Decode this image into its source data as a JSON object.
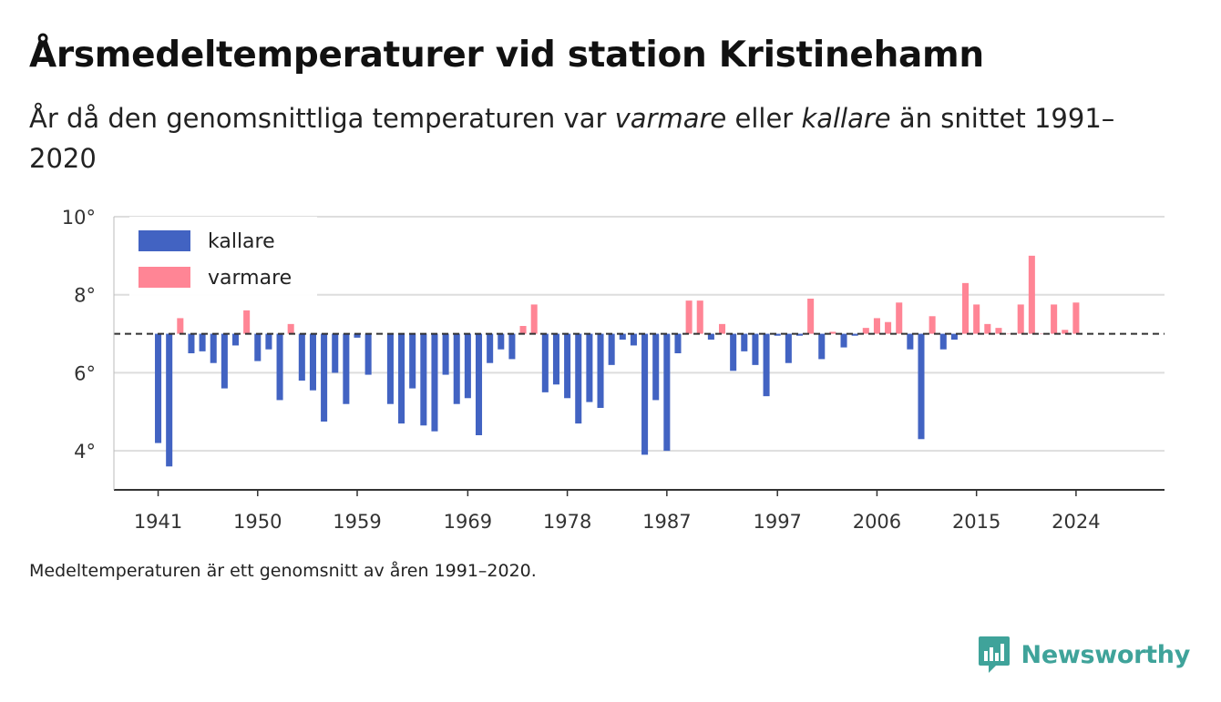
{
  "title": "Årsmedeltemperaturer vid station Kristinehamn",
  "subtitle": {
    "part1": "År då den genomsnittliga temperaturen var ",
    "warm_word": "varmare",
    "part2": " eller ",
    "cold_word": "kallare",
    "part3": " än snittet 1991–2020"
  },
  "footnote": "Medeltemperaturen är ett genomsnitt av åren 1991–2020.",
  "brand": "Newsworthy",
  "colors": {
    "cold": "#4263c2",
    "warm": "#ff8595",
    "grid": "#dddddd",
    "axis": "#333333",
    "brand": "#3fa39a"
  },
  "chart_data": {
    "type": "bar",
    "baseline": 7.0,
    "ylim": [
      3,
      10
    ],
    "yticks": [
      4,
      6,
      8,
      10
    ],
    "ytick_labels": [
      "4°",
      "6°",
      "8°",
      "10°"
    ],
    "xlim": [
      1937,
      2032
    ],
    "xticks": [
      1941,
      1950,
      1959,
      1969,
      1978,
      1987,
      1997,
      2006,
      2015,
      2024
    ],
    "xtick_labels": [
      "1941",
      "1950",
      "1959",
      "1969",
      "1978",
      "1987",
      "1997",
      "2006",
      "2015",
      "2024"
    ],
    "legend": {
      "position": "top-left",
      "entries": [
        {
          "key": "cold",
          "label": "kallare"
        },
        {
          "key": "warm",
          "label": "varmare"
        }
      ]
    },
    "years": [
      1941,
      1942,
      1943,
      1944,
      1945,
      1946,
      1947,
      1948,
      1949,
      1950,
      1951,
      1952,
      1953,
      1954,
      1955,
      1956,
      1957,
      1958,
      1959,
      1960,
      1961,
      1962,
      1963,
      1964,
      1965,
      1966,
      1967,
      1968,
      1969,
      1970,
      1971,
      1972,
      1973,
      1974,
      1975,
      1976,
      1977,
      1978,
      1979,
      1980,
      1981,
      1982,
      1983,
      1984,
      1985,
      1986,
      1987,
      1988,
      1989,
      1990,
      1991,
      1992,
      1993,
      1994,
      1995,
      1996,
      1997,
      1998,
      1999,
      2000,
      2001,
      2002,
      2003,
      2004,
      2005,
      2006,
      2007,
      2008,
      2009,
      2010,
      2011,
      2012,
      2013,
      2014,
      2015,
      2016,
      2017,
      2018,
      2019,
      2020,
      2021,
      2022,
      2023,
      2024
    ],
    "values": [
      4.2,
      3.6,
      7.4,
      6.5,
      6.55,
      6.25,
      5.6,
      6.7,
      7.6,
      6.3,
      6.6,
      5.3,
      7.25,
      5.8,
      5.55,
      4.75,
      6.0,
      5.2,
      6.9,
      5.95,
      7.0,
      5.2,
      4.7,
      5.6,
      4.65,
      4.5,
      5.95,
      5.2,
      5.35,
      4.4,
      6.25,
      6.6,
      6.35,
      7.2,
      7.75,
      5.5,
      5.7,
      5.35,
      4.7,
      5.25,
      5.1,
      6.2,
      6.85,
      6.7,
      3.9,
      5.3,
      4.0,
      6.5,
      7.85,
      7.85,
      6.85,
      7.25,
      6.05,
      6.55,
      6.2,
      5.4,
      6.95,
      6.25,
      6.95,
      7.9,
      6.35,
      7.05,
      6.65,
      6.95,
      7.15,
      7.4,
      7.3,
      7.8,
      6.6,
      4.3,
      7.45,
      6.6,
      6.85,
      8.3,
      7.75,
      7.25,
      7.15,
      7.0,
      7.75,
      9.0,
      7.0,
      7.75,
      7.1,
      7.8
    ]
  }
}
